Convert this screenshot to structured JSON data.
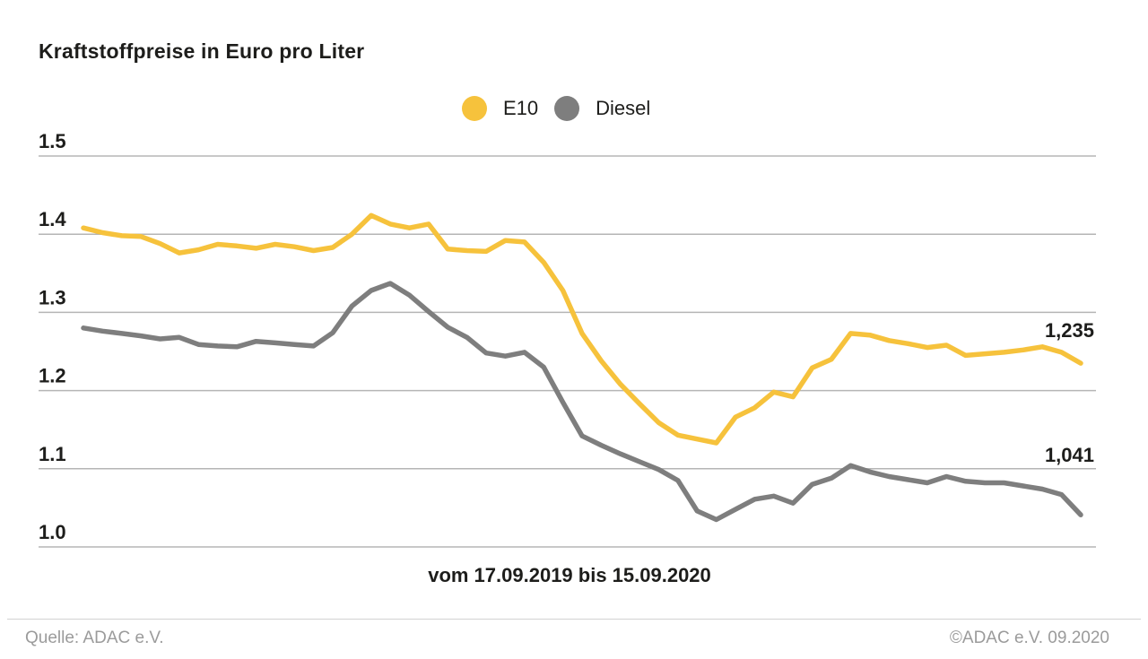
{
  "title": "Kraftstoffpreise in Euro pro Liter",
  "legend": {
    "items": [
      {
        "label": "E10",
        "color": "#F6C23C"
      },
      {
        "label": "Diesel",
        "color": "#7E7E7E"
      }
    ]
  },
  "chart_data": {
    "type": "line",
    "title": "Kraftstoffpreise in Euro pro Liter",
    "x_caption": "vom 17.09.2019 bis 15.09.2020",
    "x_range": [
      "17.09.2019",
      "15.09.2020"
    ],
    "x_interval": "weekly",
    "ylabel": "Euro pro Liter",
    "ylim": [
      1.0,
      1.5
    ],
    "y_ticks": [
      "1.5",
      "1.4",
      "1.3",
      "1.2",
      "1.1",
      "1.0"
    ],
    "grid": true,
    "grid_color": "#b5b5b5",
    "legend_position": "top-center",
    "series": [
      {
        "name": "E10",
        "color": "#F6C23C",
        "end_label": "1,235",
        "end_value": 1.235,
        "values": [
          1.408,
          1.402,
          1.398,
          1.397,
          1.388,
          1.376,
          1.38,
          1.387,
          1.385,
          1.382,
          1.387,
          1.384,
          1.379,
          1.383,
          1.4,
          1.424,
          1.413,
          1.408,
          1.413,
          1.381,
          1.379,
          1.378,
          1.392,
          1.39,
          1.364,
          1.328,
          1.273,
          1.238,
          1.208,
          1.183,
          1.159,
          1.143,
          1.138,
          1.133,
          1.166,
          1.178,
          1.198,
          1.192,
          1.229,
          1.24,
          1.273,
          1.271,
          1.264,
          1.26,
          1.255,
          1.258,
          1.245,
          1.247,
          1.249,
          1.252,
          1.256,
          1.249,
          1.235
        ]
      },
      {
        "name": "Diesel",
        "color": "#7E7E7E",
        "end_label": "1,041",
        "end_value": 1.041,
        "values": [
          1.28,
          1.276,
          1.273,
          1.27,
          1.266,
          1.268,
          1.259,
          1.257,
          1.256,
          1.263,
          1.261,
          1.259,
          1.257,
          1.274,
          1.308,
          1.328,
          1.337,
          1.322,
          1.301,
          1.281,
          1.268,
          1.248,
          1.244,
          1.249,
          1.23,
          1.185,
          1.142,
          1.13,
          1.119,
          1.109,
          1.099,
          1.085,
          1.046,
          1.035,
          1.048,
          1.061,
          1.065,
          1.056,
          1.08,
          1.088,
          1.104,
          1.096,
          1.09,
          1.086,
          1.082,
          1.09,
          1.084,
          1.082,
          1.082,
          1.078,
          1.074,
          1.067,
          1.041
        ]
      }
    ]
  },
  "footer": {
    "source": "Quelle: ADAC e.V.",
    "copyright": "©ADAC e.V. 09.2020"
  }
}
